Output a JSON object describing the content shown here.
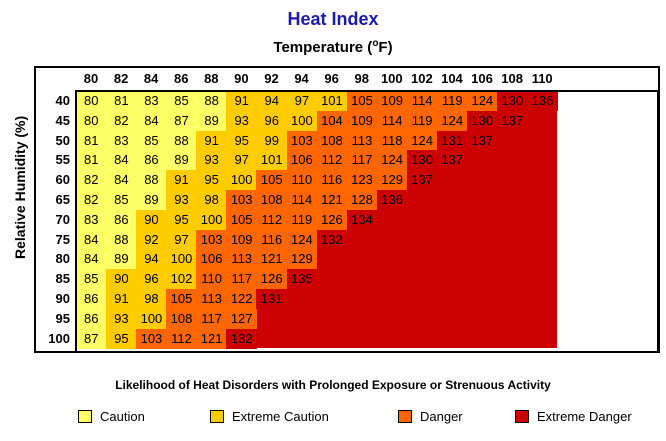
{
  "chart_data": {
    "type": "heatmap",
    "title": "Heat Index",
    "xlabel": "Temperature (°F)",
    "xlabel_parts": {
      "prefix": "Temperature (",
      "sup": "o",
      "suffix": "F)"
    },
    "ylabel": "Relative Humidity (%)",
    "x": [
      80,
      82,
      84,
      86,
      88,
      90,
      92,
      94,
      96,
      98,
      100,
      102,
      104,
      106,
      108,
      110
    ],
    "y": [
      40,
      45,
      50,
      55,
      60,
      65,
      70,
      75,
      80,
      85,
      90,
      95,
      100
    ],
    "values": [
      [
        80,
        81,
        83,
        85,
        88,
        91,
        94,
        97,
        101,
        105,
        109,
        114,
        119,
        124,
        130,
        136
      ],
      [
        80,
        82,
        84,
        87,
        89,
        93,
        96,
        100,
        104,
        109,
        114,
        119,
        124,
        130,
        137
      ],
      [
        81,
        83,
        85,
        88,
        91,
        95,
        99,
        103,
        108,
        113,
        118,
        124,
        131,
        137
      ],
      [
        81,
        84,
        86,
        89,
        93,
        97,
        101,
        106,
        112,
        117,
        124,
        130,
        137
      ],
      [
        82,
        84,
        88,
        91,
        95,
        100,
        105,
        110,
        116,
        123,
        129,
        137
      ],
      [
        82,
        85,
        89,
        93,
        98,
        103,
        108,
        114,
        121,
        128,
        136
      ],
      [
        83,
        86,
        90,
        95,
        100,
        105,
        112,
        119,
        126,
        134
      ],
      [
        84,
        88,
        92,
        97,
        103,
        109,
        116,
        124,
        132
      ],
      [
        84,
        89,
        94,
        100,
        106,
        113,
        121,
        129
      ],
      [
        85,
        90,
        96,
        102,
        110,
        117,
        126,
        135
      ],
      [
        86,
        91,
        98,
        105,
        113,
        122,
        131
      ],
      [
        86,
        93,
        100,
        108,
        117,
        127
      ],
      [
        87,
        95,
        103,
        112,
        121,
        132
      ]
    ],
    "categories_legend": [
      {
        "label": "Caution",
        "color": "#ffff66"
      },
      {
        "label": "Extreme Caution",
        "color": "#ffcc00"
      },
      {
        "label": "Danger",
        "color": "#ff6600"
      },
      {
        "label": "Extreme Danger",
        "color": "#cc0000"
      }
    ],
    "empty_color": "#cc0000",
    "legend_title": "Likelihood of Heat Disorders with Prolonged Exposure or Strenuous Activity"
  }
}
